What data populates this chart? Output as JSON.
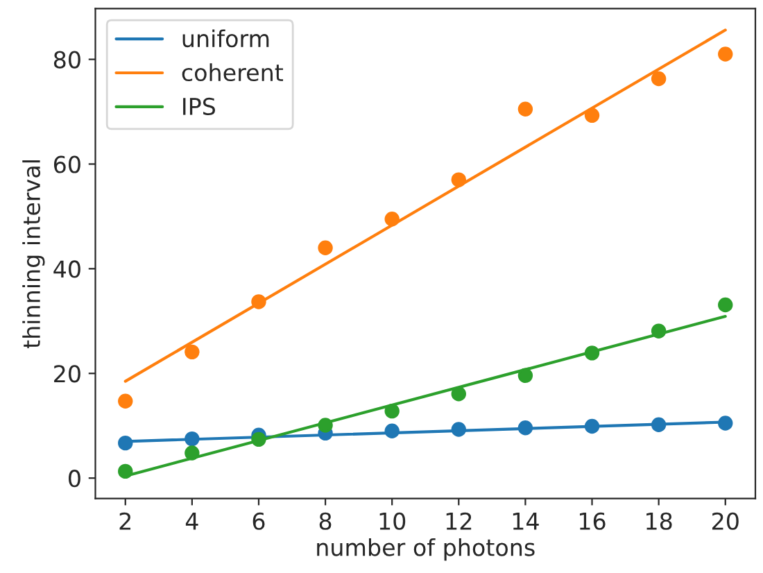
{
  "chart_data": {
    "type": "scatter",
    "xlabel": "number of photons",
    "ylabel": "thinning interval",
    "xlim": [
      1.1,
      20.9
    ],
    "ylim": [
      -3.9,
      89.7
    ],
    "xticks": [
      2,
      4,
      6,
      8,
      10,
      12,
      14,
      16,
      18,
      20
    ],
    "yticks": [
      0,
      20,
      40,
      60,
      80
    ],
    "legend": "top left",
    "grid": false,
    "series": [
      {
        "type": "line",
        "name": "uniform",
        "color": "#1f77b4",
        "x": [
          2,
          20
        ],
        "values": [
          7.0,
          10.7
        ]
      },
      {
        "type": "line",
        "name": "coherent",
        "color": "#ff7f0e",
        "x": [
          2,
          20
        ],
        "values": [
          18.5,
          85.6
        ]
      },
      {
        "type": "line",
        "name": "IPS",
        "color": "#2ca02c",
        "x": [
          2,
          20
        ],
        "values": [
          0.4,
          30.9
        ]
      },
      {
        "marker": "circle",
        "color": "#1f77b4",
        "x": [
          2,
          4,
          6,
          8,
          10,
          12,
          14,
          16,
          18,
          20
        ],
        "values": [
          6.7,
          7.5,
          8.2,
          8.6,
          9.0,
          9.3,
          9.6,
          9.9,
          10.2,
          10.5
        ]
      },
      {
        "marker": "circle",
        "color": "#ff7f0e",
        "x": [
          2,
          4,
          6,
          8,
          10,
          12,
          14,
          16,
          18,
          20
        ],
        "values": [
          14.7,
          24.1,
          33.7,
          44.0,
          49.5,
          57.0,
          70.5,
          69.3,
          76.3,
          81.0
        ]
      },
      {
        "marker": "circle",
        "color": "#2ca02c",
        "x": [
          2,
          4,
          6,
          8,
          10,
          12,
          14,
          16,
          18,
          20
        ],
        "values": [
          1.3,
          4.8,
          7.4,
          10.1,
          12.8,
          16.1,
          19.6,
          23.9,
          28.1,
          33.1
        ]
      }
    ]
  }
}
